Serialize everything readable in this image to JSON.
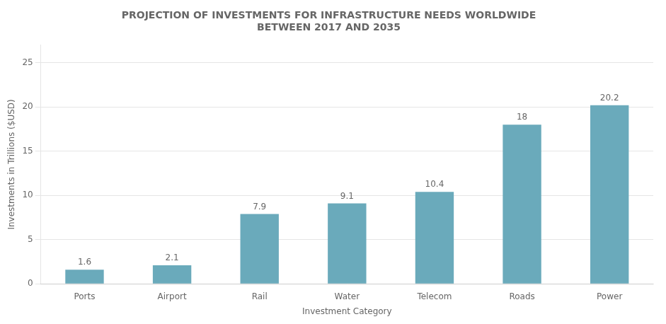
{
  "chart_data": {
    "type": "bar",
    "title": [
      "PROJECTION OF INVESTMENTS FOR INFRASTRUCTURE NEEDS WORLDWIDE",
      "BETWEEN 2017 AND 2035"
    ],
    "x_label": "Investment Category",
    "y_label": "Investments in Trillions ($USD)",
    "categories": [
      "Ports",
      "Airport",
      "Rail",
      "Water",
      "Telecom",
      "Roads",
      "Power"
    ],
    "values": [
      1.6,
      2.1,
      7.9,
      9.1,
      10.4,
      18,
      20.2
    ],
    "color": "#6aaabb",
    "ylim": [
      0,
      27
    ],
    "yticks": [
      0,
      5,
      10,
      15,
      20,
      25
    ],
    "grid": true,
    "data_labels": true
  }
}
